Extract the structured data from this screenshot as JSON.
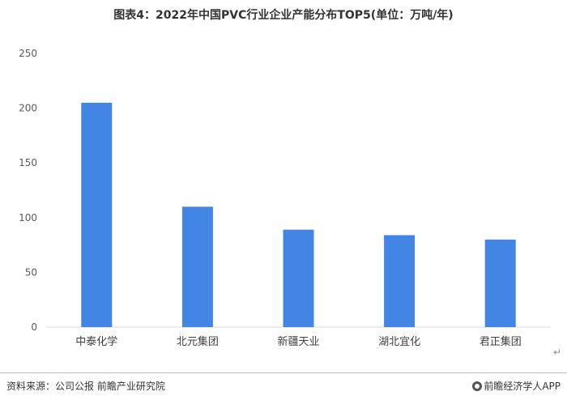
{
  "chart_data": {
    "type": "bar",
    "title": "图表4：2022年中国PVC行业企业产能分布TOP5(单位：万吨/年)",
    "categories": [
      "中泰化学",
      "北元集团",
      "新疆天业",
      "湖北宜化",
      "君正集团"
    ],
    "values": [
      205,
      110,
      89,
      84,
      80
    ],
    "ylim": [
      0,
      250
    ],
    "yticks": [
      0,
      50,
      100,
      150,
      200,
      250
    ],
    "xlabel": "",
    "ylabel": "",
    "bar_color": "#4285e5",
    "grid": false,
    "legend": "none"
  },
  "footer": {
    "source": "资料来源：公司公报 前瞻产业研究院",
    "brand": "前瞻经济学人APP"
  },
  "marks": {
    "return_symbol": "↵"
  }
}
